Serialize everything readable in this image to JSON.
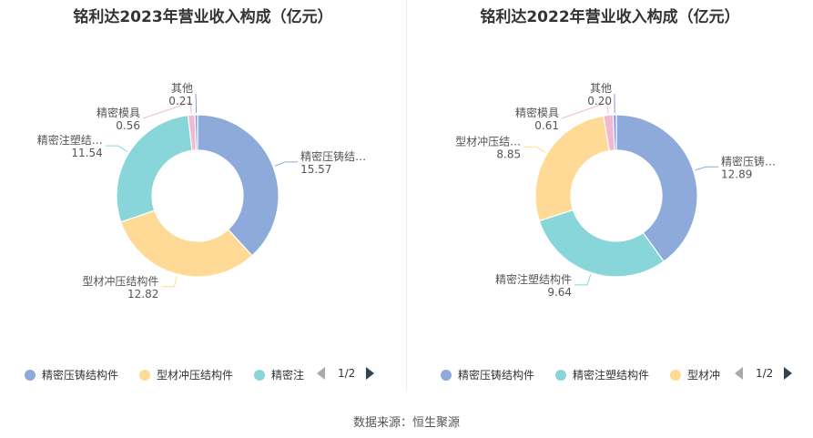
{
  "chart_data": [
    {
      "type": "pie",
      "donut": true,
      "title": "铭利达2023年营业收入构成（亿元）",
      "slices": [
        {
          "name": "精密压铸结构件",
          "label": "精密压铸结…",
          "value": 15.57,
          "color": "#8eaadb"
        },
        {
          "name": "型材冲压结构件",
          "label": "型材冲压结构件",
          "value": 12.82,
          "color": "#ffd996"
        },
        {
          "name": "精密注塑结构件",
          "label": "精密注塑结…",
          "value": 11.54,
          "color": "#88d6d9"
        },
        {
          "name": "精密模具",
          "label": "精密模具",
          "value": 0.56,
          "color": "#f1b9cf"
        },
        {
          "name": "其他",
          "label": "其他",
          "value": 0.21,
          "color": "#8891ea"
        }
      ],
      "legend": {
        "items": [
          "精密压铸结构件",
          "型材冲压结构件",
          "精密注"
        ],
        "colors": [
          "#8eaadb",
          "#ffd996",
          "#88d6d9"
        ],
        "page": "1/2"
      }
    },
    {
      "type": "pie",
      "donut": true,
      "title": "铭利达2022年营业收入构成（亿元）",
      "slices": [
        {
          "name": "精密压铸结构件",
          "label": "精密压铸…",
          "value": 12.89,
          "color": "#8eaadb"
        },
        {
          "name": "精密注塑结构件",
          "label": "精密注塑结构件",
          "value": 9.64,
          "color": "#88d6d9"
        },
        {
          "name": "型材冲压结构件",
          "label": "型材冲压结…",
          "value": 8.85,
          "color": "#ffd996"
        },
        {
          "name": "精密模具",
          "label": "精密模具",
          "value": 0.61,
          "color": "#f1b9cf"
        },
        {
          "name": "其他",
          "label": "其他",
          "value": 0.2,
          "color": "#8891ea"
        }
      ],
      "legend": {
        "items": [
          "精密压铸结构件",
          "精密注塑结构件",
          "型材冲"
        ],
        "colors": [
          "#8eaadb",
          "#88d6d9",
          "#ffd996"
        ],
        "page": "1/2"
      }
    }
  ],
  "source": "数据来源：恒生聚源"
}
